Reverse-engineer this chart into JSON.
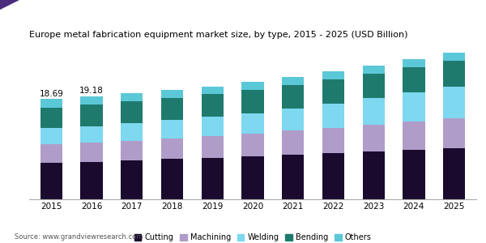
{
  "title": "Europe metal fabrication equipment market size, by type, 2015 - 2025 (USD Billion)",
  "years": [
    2015,
    2016,
    2017,
    2018,
    2019,
    2020,
    2021,
    2022,
    2023,
    2024,
    2025
  ],
  "categories": [
    "Cutting",
    "Machining",
    "Welding",
    "Bending",
    "Others"
  ],
  "colors": [
    "#1a0a2e",
    "#b09cc8",
    "#7dd8f0",
    "#1f7a6e",
    "#5bc8d8"
  ],
  "data": {
    "Cutting": [
      6.8,
      7.0,
      7.3,
      7.5,
      7.7,
      8.0,
      8.3,
      8.6,
      8.9,
      9.2,
      9.5
    ],
    "Machining": [
      3.4,
      3.5,
      3.6,
      3.8,
      4.0,
      4.2,
      4.5,
      4.7,
      5.0,
      5.3,
      5.6
    ],
    "Welding": [
      3.0,
      3.1,
      3.3,
      3.4,
      3.6,
      3.8,
      4.1,
      4.5,
      4.9,
      5.4,
      5.9
    ],
    "Bending": [
      3.8,
      4.0,
      4.0,
      4.1,
      4.2,
      4.3,
      4.4,
      4.5,
      4.6,
      4.7,
      4.8
    ],
    "Others": [
      1.69,
      1.58,
      1.5,
      1.5,
      1.5,
      1.5,
      1.5,
      1.5,
      1.5,
      1.5,
      1.5
    ]
  },
  "totals_labels": {
    "2015": "18.69",
    "2016": "19.18"
  },
  "ylim": [
    0,
    28
  ],
  "source": "Source: www.grandviewresearch.com",
  "bar_width": 0.55,
  "title_fontsize": 8.0,
  "tick_fontsize": 7.5,
  "legend_fontsize": 7.0
}
